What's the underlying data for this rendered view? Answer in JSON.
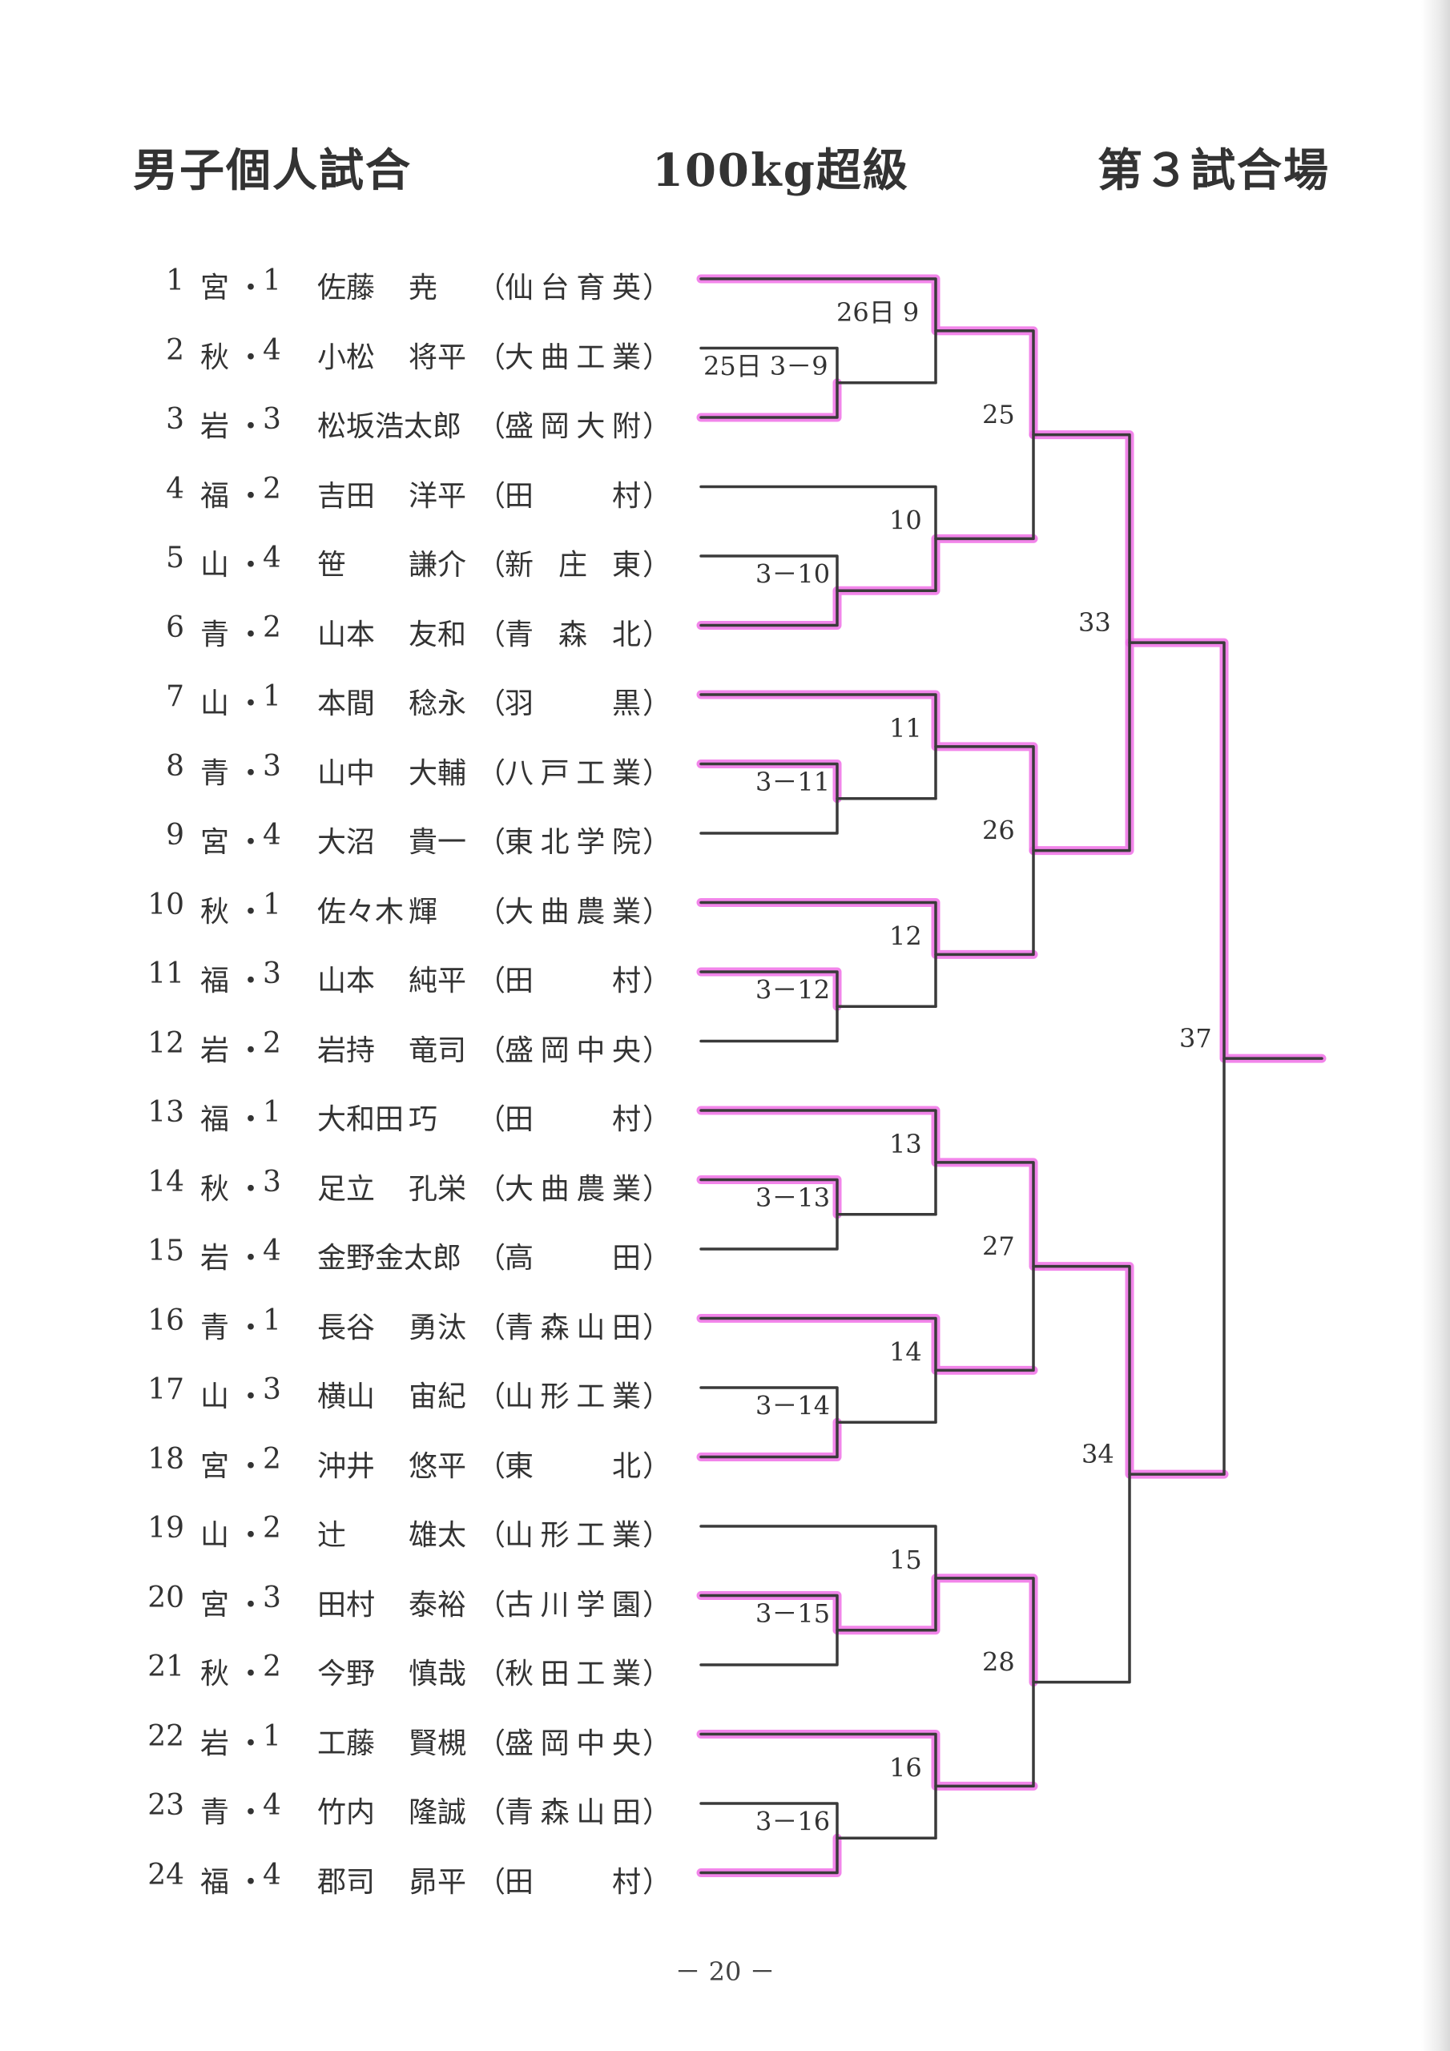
{
  "header": {
    "title_left": "男子個人試合",
    "title_center": "100kg超級",
    "title_right": "第３試合場"
  },
  "entries": [
    {
      "no": "1",
      "pref": "宮",
      "year": "1",
      "surname": "佐藤",
      "given": "尭",
      "school": "仙台育英"
    },
    {
      "no": "2",
      "pref": "秋",
      "year": "4",
      "surname": "小松",
      "given": "将平",
      "school": "大曲工業"
    },
    {
      "no": "3",
      "pref": "岩",
      "year": "3",
      "surname": "松坂浩太郎",
      "given": "",
      "school": "盛岡大附"
    },
    {
      "no": "4",
      "pref": "福",
      "year": "2",
      "surname": "吉田",
      "given": "洋平",
      "school": "田村"
    },
    {
      "no": "5",
      "pref": "山",
      "year": "4",
      "surname": "笹",
      "given": "謙介",
      "school": "新庄東"
    },
    {
      "no": "6",
      "pref": "青",
      "year": "2",
      "surname": "山本",
      "given": "友和",
      "school": "青森北"
    },
    {
      "no": "7",
      "pref": "山",
      "year": "1",
      "surname": "本間",
      "given": "稔永",
      "school": "羽黒"
    },
    {
      "no": "8",
      "pref": "青",
      "year": "3",
      "surname": "山中",
      "given": "大輔",
      "school": "八戸工業"
    },
    {
      "no": "9",
      "pref": "宮",
      "year": "4",
      "surname": "大沼",
      "given": "貴一",
      "school": "東北学院"
    },
    {
      "no": "10",
      "pref": "秋",
      "year": "1",
      "surname": "佐々木",
      "given": "輝",
      "school": "大曲農業"
    },
    {
      "no": "11",
      "pref": "福",
      "year": "3",
      "surname": "山本",
      "given": "純平",
      "school": "田村"
    },
    {
      "no": "12",
      "pref": "岩",
      "year": "2",
      "surname": "岩持",
      "given": "竜司",
      "school": "盛岡中央"
    },
    {
      "no": "13",
      "pref": "福",
      "year": "1",
      "surname": "大和田",
      "given": "巧",
      "school": "田村"
    },
    {
      "no": "14",
      "pref": "秋",
      "year": "3",
      "surname": "足立",
      "given": "孔栄",
      "school": "大曲農業"
    },
    {
      "no": "15",
      "pref": "岩",
      "year": "4",
      "surname": "金野金太郎",
      "given": "",
      "school": "高田"
    },
    {
      "no": "16",
      "pref": "青",
      "year": "1",
      "surname": "長谷",
      "given": "勇汰",
      "school": "青森山田"
    },
    {
      "no": "17",
      "pref": "山",
      "year": "3",
      "surname": "横山",
      "given": "宙紀",
      "school": "山形工業"
    },
    {
      "no": "18",
      "pref": "宮",
      "year": "2",
      "surname": "沖井",
      "given": "悠平",
      "school": "東北"
    },
    {
      "no": "19",
      "pref": "山",
      "year": "2",
      "surname": "辻",
      "given": "雄太",
      "school": "山形工業"
    },
    {
      "no": "20",
      "pref": "宮",
      "year": "3",
      "surname": "田村",
      "given": "泰裕",
      "school": "古川学園"
    },
    {
      "no": "21",
      "pref": "秋",
      "year": "2",
      "surname": "今野",
      "given": "慎哉",
      "school": "秋田工業"
    },
    {
      "no": "22",
      "pref": "岩",
      "year": "1",
      "surname": "工藤",
      "given": "賢槻",
      "school": "盛岡中央"
    },
    {
      "no": "23",
      "pref": "青",
      "year": "4",
      "surname": "竹内",
      "given": "隆誠",
      "school": "青森山田"
    },
    {
      "no": "24",
      "pref": "福",
      "year": "4",
      "surname": "郡司",
      "given": "昴平",
      "school": "田村"
    }
  ],
  "separator": "・",
  "paren_open": "（",
  "paren_close": "）",
  "match_labels": {
    "m9": "26日 9",
    "m3_9": "25日 3－9",
    "m10": "10",
    "m3_10": "3－10",
    "m11": "11",
    "m3_11": "3－11",
    "m12": "12",
    "m3_12": "3－12",
    "m13": "13",
    "m3_13": "3－13",
    "m14": "14",
    "m3_14": "3－14",
    "m15": "15",
    "m3_15": "3－15",
    "m16": "16",
    "m3_16": "3－16",
    "m25": "25",
    "m26": "26",
    "m27": "27",
    "m28": "28",
    "m33": "33",
    "m34": "34",
    "m37": "37"
  },
  "colors": {
    "bracket_line": "#3a3a3a",
    "highlight": "#f070e6"
  },
  "page_number": "－ 20 －"
}
